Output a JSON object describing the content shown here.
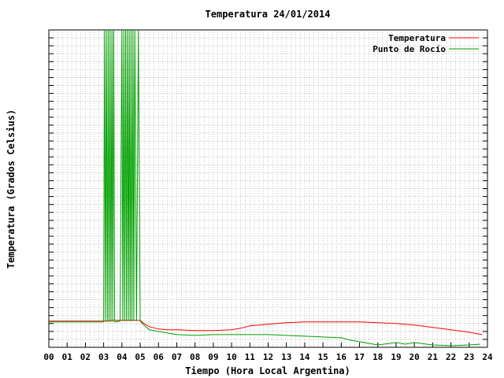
{
  "chart_data": {
    "type": "line",
    "title": "Temperatura 24/01/2014",
    "xlabel": "Tiempo (Hora Local Argentina)",
    "ylabel": "Temperatura (Grados Celsius)",
    "xlim": [
      0,
      24
    ],
    "ylim": [
      0,
      40
    ],
    "x_ticks": [
      "00",
      "01",
      "02",
      "03",
      "04",
      "05",
      "06",
      "07",
      "08",
      "09",
      "10",
      "11",
      "12",
      "13",
      "14",
      "15",
      "16",
      "17",
      "18",
      "19",
      "20",
      "21",
      "22",
      "23",
      "24"
    ],
    "grid": true,
    "legend_position": "top-right",
    "series": [
      {
        "name": "Temperatura",
        "color": "#ff0000",
        "x": [
          0.0,
          1.0,
          2.0,
          3.0,
          3.5,
          4.0,
          4.5,
          5.0,
          5.2,
          5.5,
          6.0,
          6.5,
          7.0,
          8.0,
          9.0,
          10.0,
          10.5,
          11.0,
          12.0,
          13.0,
          14.0,
          15.0,
          16.0,
          17.0,
          18.0,
          19.0,
          20.0,
          21.0,
          22.0,
          23.0,
          23.7
        ],
        "y": [
          3.3,
          3.3,
          3.3,
          3.3,
          3.4,
          3.4,
          3.4,
          3.4,
          3.0,
          2.6,
          2.3,
          2.2,
          2.2,
          2.1,
          2.1,
          2.2,
          2.4,
          2.7,
          2.9,
          3.1,
          3.2,
          3.2,
          3.2,
          3.2,
          3.1,
          3.0,
          2.8,
          2.5,
          2.2,
          1.9,
          1.6
        ]
      },
      {
        "name": "Punto de Rocío",
        "color": "#00a000",
        "x": [
          0.0,
          1.0,
          2.0,
          3.0,
          3.05,
          3.1,
          3.15,
          3.2,
          3.25,
          3.3,
          3.35,
          3.4,
          3.45,
          3.5,
          3.55,
          3.6,
          3.9,
          4.0,
          4.05,
          4.1,
          4.15,
          4.2,
          4.25,
          4.3,
          4.35,
          4.4,
          4.45,
          4.5,
          4.55,
          4.6,
          4.65,
          4.7,
          4.8,
          4.9,
          5.0,
          5.2,
          5.5,
          6.0,
          6.5,
          7.0,
          8.0,
          9.0,
          10.0,
          11.0,
          12.0,
          13.0,
          14.0,
          15.0,
          16.0,
          16.5,
          17.0,
          17.5,
          18.0,
          19.0,
          19.5,
          20.0,
          21.0,
          22.0,
          23.0,
          23.6
        ],
        "y": [
          3.2,
          3.2,
          3.2,
          3.2,
          40,
          3.2,
          40,
          3.2,
          40,
          3.2,
          40,
          3.2,
          40,
          3.2,
          40,
          3.2,
          3.3,
          40,
          3.3,
          40,
          3.3,
          40,
          3.3,
          40,
          3.3,
          40,
          3.3,
          40,
          3.3,
          40,
          3.3,
          40,
          3.3,
          40,
          3.3,
          2.8,
          2.2,
          2.0,
          1.8,
          1.6,
          1.5,
          1.6,
          1.6,
          1.6,
          1.6,
          1.5,
          1.4,
          1.3,
          1.2,
          0.9,
          0.7,
          0.5,
          0.3,
          0.6,
          0.4,
          0.6,
          0.3,
          0.2,
          0.3,
          0.4
        ]
      }
    ]
  }
}
